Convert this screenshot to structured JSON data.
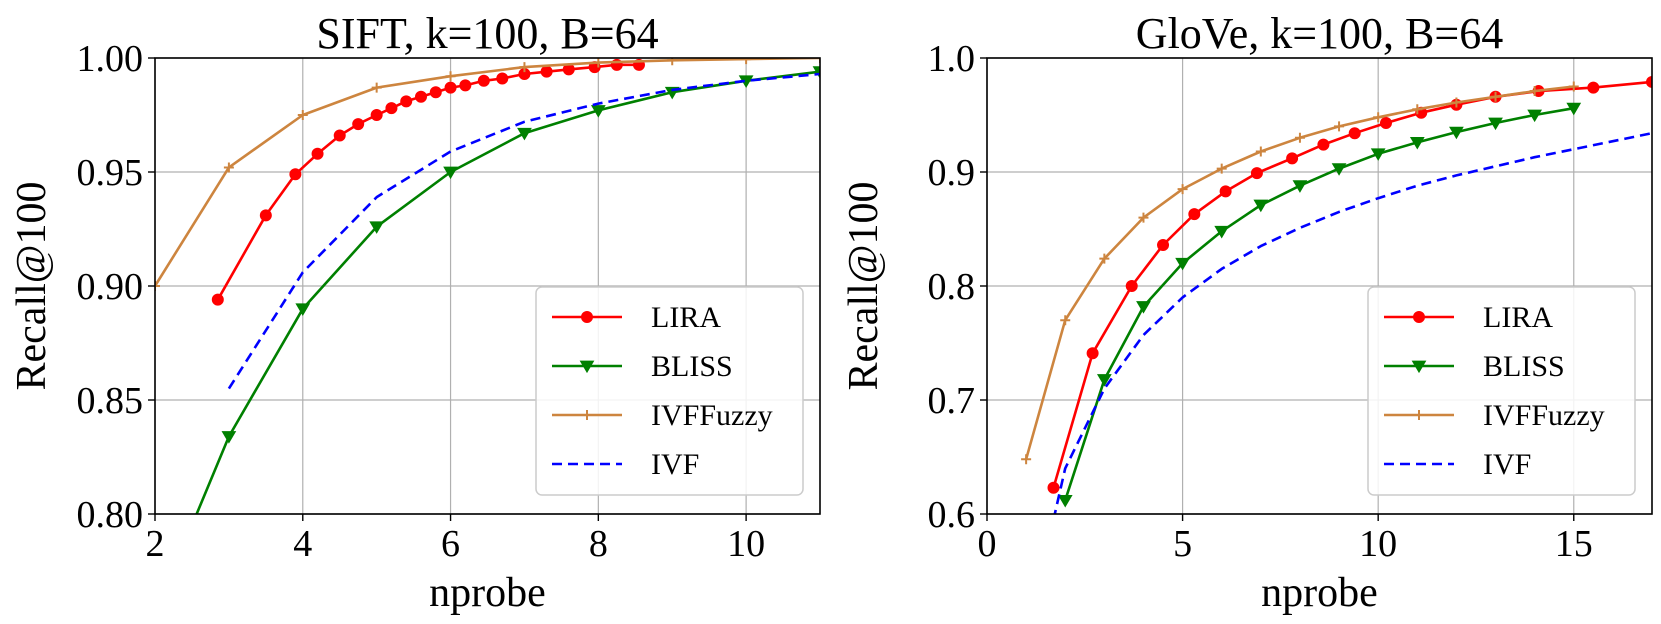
{
  "chart_data": [
    {
      "type": "line",
      "title": "SIFT, k=100, B=64",
      "xlabel": "nprobe",
      "ylabel": "Recall@100",
      "xlim": [
        2,
        11
      ],
      "ylim": [
        0.8,
        1.0
      ],
      "xticks": [
        2,
        4,
        6,
        8,
        10
      ],
      "xtick_labels": [
        "2",
        "4",
        "6",
        "8",
        "10"
      ],
      "yticks": [
        0.8,
        0.85,
        0.9,
        0.95,
        1.0
      ],
      "ytick_labels": [
        "0.80",
        "0.85",
        "0.90",
        "0.95",
        "1.00"
      ],
      "grid": true,
      "legend_position": "lower-right",
      "series": [
        {
          "name": "LIRA",
          "color": "#ff0000",
          "marker": "circle",
          "dash": "solid",
          "points": [
            [
              2.85,
              0.894
            ],
            [
              3.5,
              0.931
            ],
            [
              3.9,
              0.949
            ],
            [
              4.2,
              0.958
            ],
            [
              4.5,
              0.966
            ],
            [
              4.75,
              0.971
            ],
            [
              5.0,
              0.975
            ],
            [
              5.2,
              0.978
            ],
            [
              5.4,
              0.981
            ],
            [
              5.6,
              0.983
            ],
            [
              5.8,
              0.985
            ],
            [
              6.0,
              0.987
            ],
            [
              6.2,
              0.988
            ],
            [
              6.45,
              0.99
            ],
            [
              6.7,
              0.991
            ],
            [
              7.0,
              0.993
            ],
            [
              7.3,
              0.994
            ],
            [
              7.6,
              0.995
            ],
            [
              7.95,
              0.996
            ],
            [
              8.25,
              0.997
            ],
            [
              8.55,
              0.997
            ]
          ]
        },
        {
          "name": "BLISS",
          "color": "#008000",
          "marker": "triangle-down",
          "dash": "solid",
          "points": [
            [
              2.5,
              0.795
            ],
            [
              3.0,
              0.834
            ],
            [
              4.0,
              0.89
            ],
            [
              5.0,
              0.926
            ],
            [
              6.0,
              0.95
            ],
            [
              7.0,
              0.967
            ],
            [
              8.0,
              0.977
            ],
            [
              9.0,
              0.985
            ],
            [
              10.0,
              0.99
            ],
            [
              11.0,
              0.994
            ]
          ]
        },
        {
          "name": "IVFFuzzy",
          "color": "#cd853f",
          "marker": "plus",
          "dash": "solid",
          "points": [
            [
              2.0,
              0.9
            ],
            [
              3.0,
              0.952
            ],
            [
              4.0,
              0.975
            ],
            [
              5.0,
              0.987
            ],
            [
              6.0,
              0.992
            ],
            [
              7.0,
              0.996
            ],
            [
              8.0,
              0.998
            ],
            [
              9.0,
              0.999
            ],
            [
              10.0,
              0.9995
            ],
            [
              11.0,
              1.0
            ]
          ]
        },
        {
          "name": "IVF",
          "color": "#0000ff",
          "marker": "none",
          "dash": "dashed",
          "points": [
            [
              3.0,
              0.855
            ],
            [
              4.0,
              0.906
            ],
            [
              5.0,
              0.939
            ],
            [
              6.0,
              0.959
            ],
            [
              7.0,
              0.972
            ],
            [
              8.0,
              0.98
            ],
            [
              9.0,
              0.986
            ],
            [
              10.0,
              0.99
            ],
            [
              11.0,
              0.993
            ]
          ]
        }
      ]
    },
    {
      "type": "line",
      "title": "GloVe, k=100, B=64",
      "xlabel": "nprobe",
      "ylabel": "Recall@100",
      "xlim": [
        0,
        17
      ],
      "ylim": [
        0.6,
        1.0
      ],
      "xticks": [
        0,
        5,
        10,
        15
      ],
      "xtick_labels": [
        "0",
        "5",
        "10",
        "15"
      ],
      "yticks": [
        0.6,
        0.7,
        0.8,
        0.9,
        1.0
      ],
      "ytick_labels": [
        "0.6",
        "0.7",
        "0.8",
        "0.9",
        "1.0"
      ],
      "grid": true,
      "legend_position": "lower-right",
      "series": [
        {
          "name": "LIRA",
          "color": "#ff0000",
          "marker": "circle",
          "dash": "solid",
          "points": [
            [
              1.7,
              0.623
            ],
            [
              2.7,
              0.741
            ],
            [
              3.7,
              0.8
            ],
            [
              4.5,
              0.836
            ],
            [
              5.3,
              0.863
            ],
            [
              6.1,
              0.883
            ],
            [
              6.9,
              0.899
            ],
            [
              7.8,
              0.912
            ],
            [
              8.6,
              0.924
            ],
            [
              9.4,
              0.934
            ],
            [
              10.2,
              0.943
            ],
            [
              11.1,
              0.952
            ],
            [
              12.0,
              0.959
            ],
            [
              13.0,
              0.966
            ],
            [
              14.1,
              0.971
            ],
            [
              15.5,
              0.974
            ],
            [
              17.0,
              0.979
            ]
          ]
        },
        {
          "name": "BLISS",
          "color": "#008000",
          "marker": "triangle-down",
          "dash": "solid",
          "points": [
            [
              2.0,
              0.612
            ],
            [
              3.0,
              0.718
            ],
            [
              4.0,
              0.782
            ],
            [
              5.0,
              0.82
            ],
            [
              6.0,
              0.848
            ],
            [
              7.0,
              0.871
            ],
            [
              8.0,
              0.888
            ],
            [
              9.0,
              0.903
            ],
            [
              10.0,
              0.916
            ],
            [
              11.0,
              0.926
            ],
            [
              12.0,
              0.935
            ],
            [
              13.0,
              0.943
            ],
            [
              14.0,
              0.95
            ],
            [
              15.0,
              0.956
            ]
          ]
        },
        {
          "name": "IVFFuzzy",
          "color": "#cd853f",
          "marker": "plus",
          "dash": "solid",
          "points": [
            [
              1.0,
              0.648
            ],
            [
              2.0,
              0.77
            ],
            [
              3.0,
              0.824
            ],
            [
              4.0,
              0.86
            ],
            [
              5.0,
              0.885
            ],
            [
              6.0,
              0.903
            ],
            [
              7.0,
              0.918
            ],
            [
              8.0,
              0.93
            ],
            [
              9.0,
              0.94
            ],
            [
              10.0,
              0.948
            ],
            [
              11.0,
              0.955
            ],
            [
              12.0,
              0.961
            ],
            [
              13.0,
              0.966
            ],
            [
              14.0,
              0.971
            ],
            [
              15.0,
              0.975
            ]
          ]
        },
        {
          "name": "IVF",
          "color": "#0000ff",
          "marker": "none",
          "dash": "dashed",
          "points": [
            [
              1.7,
              0.595
            ],
            [
              2.0,
              0.64
            ],
            [
              3.0,
              0.71
            ],
            [
              4.0,
              0.757
            ],
            [
              5.0,
              0.79
            ],
            [
              6.0,
              0.815
            ],
            [
              7.0,
              0.835
            ],
            [
              8.0,
              0.851
            ],
            [
              9.0,
              0.865
            ],
            [
              10.0,
              0.877
            ],
            [
              11.0,
              0.888
            ],
            [
              12.0,
              0.897
            ],
            [
              13.0,
              0.905
            ],
            [
              14.0,
              0.913
            ],
            [
              15.0,
              0.92
            ],
            [
              16.0,
              0.927
            ],
            [
              17.0,
              0.934
            ]
          ]
        }
      ]
    }
  ]
}
